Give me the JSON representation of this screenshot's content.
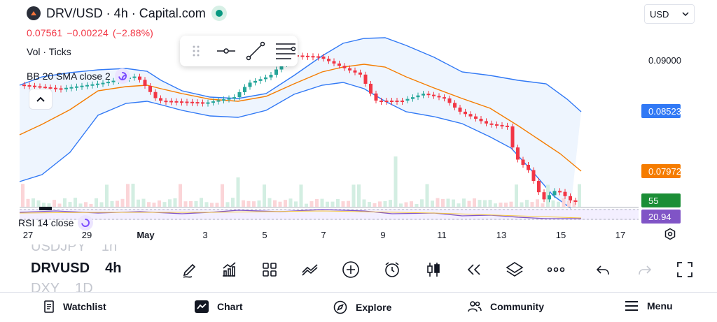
{
  "header": {
    "symbol_title": "DRV/USD · 4h · Capital.com",
    "logo_icon": "capital-com-logo",
    "live_status_color": "#089981"
  },
  "quote": {
    "price": "0.07561",
    "change": "−0.00224",
    "change_pct": "(−2.88%)",
    "color": "#f23645"
  },
  "indicators": {
    "volume": "Vol · Ticks",
    "bollinger": "BB 20 SMA close 2",
    "rsi": "RSI 14 close"
  },
  "currency_select": {
    "value": "USD"
  },
  "price_axis": {
    "label_top": "0.09000",
    "badge_upper": {
      "text": "0.08523",
      "color": "#3179f5"
    },
    "badge_basis": {
      "text": "0.07972",
      "color": "#f57c00"
    },
    "badge_volume": {
      "text": "55",
      "color": "#1b8e36"
    },
    "badge_rsi": {
      "text": "20.94",
      "color": "#8054c6"
    }
  },
  "time_axis": {
    "labels": [
      "27",
      "29",
      "May",
      "3",
      "5",
      "7",
      "9",
      "11",
      "13",
      "15",
      "17"
    ]
  },
  "symbol_list": [
    {
      "symbol": "USDJPY",
      "interval": "1h",
      "state": "faded"
    },
    {
      "symbol": "DRVUSD",
      "interval": "4h",
      "state": "active"
    },
    {
      "symbol": "DXY",
      "interval": "1D",
      "state": "faded"
    }
  ],
  "tools": [
    "pencil-icon",
    "indicators-icon",
    "layouts-icon",
    "drawings-icon",
    "add-icon",
    "alert-clock-icon",
    "candles-icon",
    "replay-icon",
    "layers-icon",
    "more-icon",
    "undo-icon",
    "redo-icon",
    "fullscreen-icon"
  ],
  "nav": {
    "watchlist": "Watchlist",
    "chart": "Chart",
    "explore": "Explore",
    "community": "Community",
    "menu": "Menu"
  },
  "chart_data": {
    "type": "candlestick",
    "interval": "4h",
    "y_axis_label_shown": 0.09,
    "last_values": {
      "upper_band": 0.08523,
      "basis": 0.07972,
      "volume": 55,
      "rsi": 20.94,
      "close": 0.07561
    },
    "colors": {
      "up": "#26a69a",
      "down": "#f23645",
      "upper_band": "#3179f5",
      "lower_band": "#3179f5",
      "basis": "#f57c00",
      "band_fill": "#e8f2fd",
      "rsi": "#8054c6"
    },
    "grid": false
  }
}
